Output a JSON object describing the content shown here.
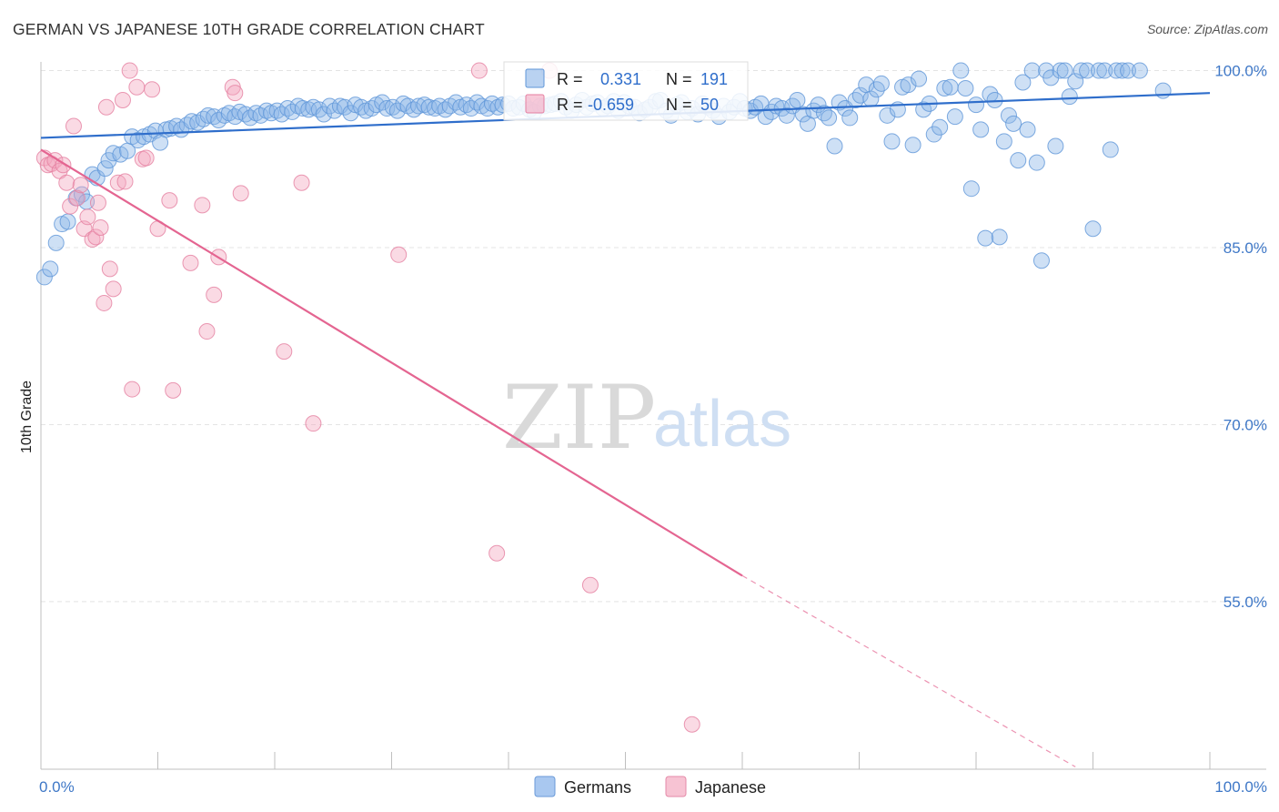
{
  "title": "GERMAN VS JAPANESE 10TH GRADE CORRELATION CHART",
  "source": "Source: ZipAtlas.com",
  "chart_data": {
    "type": "scatter",
    "title": "GERMAN VS JAPANESE 10TH GRADE CORRELATION CHART",
    "xlabel": "",
    "ylabel": "10th Grade",
    "xlim": [
      0,
      100
    ],
    "ylim": [
      40.8,
      101.2
    ],
    "x_tick_labels": [
      "0.0%",
      "100.0%"
    ],
    "y_ticks": [
      55,
      70,
      85,
      100
    ],
    "y_tick_labels": [
      "55.0%",
      "70.0%",
      "85.0%",
      "100.0%"
    ],
    "grid": true,
    "legend_position": "bottom-center",
    "watermark": {
      "left": "ZIP",
      "right": "atlas"
    },
    "stats": [
      {
        "r_label": "R =",
        "r": "0.331",
        "n_label": "N =",
        "n": "191",
        "color": "#8ab4e8"
      },
      {
        "r_label": "R =",
        "r": "-0.659",
        "n_label": "N =",
        "n": "50",
        "color": "#f4a7bf"
      }
    ],
    "series": [
      {
        "name": "Germans",
        "color": "#8ab4e8",
        "stroke": "#5f96d8",
        "trend": {
          "x": [
            0,
            100
          ],
          "y": [
            94.3,
            98.1
          ],
          "color": "#2f6ecb"
        },
        "points": [
          [
            0.3,
            82.5
          ],
          [
            0.8,
            83.2
          ],
          [
            1.3,
            85.4
          ],
          [
            1.8,
            87.0
          ],
          [
            2.3,
            87.2
          ],
          [
            3.0,
            89.2
          ],
          [
            3.5,
            89.5
          ],
          [
            3.9,
            88.9
          ],
          [
            4.4,
            91.2
          ],
          [
            4.8,
            90.9
          ],
          [
            5.5,
            91.7
          ],
          [
            5.8,
            92.4
          ],
          [
            6.2,
            93.0
          ],
          [
            6.8,
            92.9
          ],
          [
            7.4,
            93.2
          ],
          [
            7.8,
            94.4
          ],
          [
            8.3,
            94.1
          ],
          [
            8.8,
            94.4
          ],
          [
            9.3,
            94.6
          ],
          [
            9.8,
            94.9
          ],
          [
            10.2,
            93.9
          ],
          [
            10.7,
            95.0
          ],
          [
            11.1,
            95.1
          ],
          [
            11.6,
            95.3
          ],
          [
            12.0,
            95.0
          ],
          [
            12.5,
            95.4
          ],
          [
            12.9,
            95.7
          ],
          [
            13.4,
            95.6
          ],
          [
            13.9,
            95.9
          ],
          [
            14.3,
            96.2
          ],
          [
            14.8,
            96.1
          ],
          [
            15.2,
            95.8
          ],
          [
            15.7,
            96.2
          ],
          [
            16.1,
            96.4
          ],
          [
            16.6,
            96.1
          ],
          [
            17.0,
            96.5
          ],
          [
            17.5,
            96.3
          ],
          [
            17.9,
            96.0
          ],
          [
            18.4,
            96.4
          ],
          [
            18.8,
            96.2
          ],
          [
            19.3,
            96.6
          ],
          [
            19.7,
            96.4
          ],
          [
            20.2,
            96.6
          ],
          [
            20.6,
            96.3
          ],
          [
            21.1,
            96.8
          ],
          [
            21.5,
            96.5
          ],
          [
            22.0,
            97.0
          ],
          [
            22.4,
            96.8
          ],
          [
            22.9,
            96.7
          ],
          [
            23.3,
            96.9
          ],
          [
            23.8,
            96.7
          ],
          [
            24.2,
            96.3
          ],
          [
            24.7,
            97.0
          ],
          [
            25.1,
            96.6
          ],
          [
            25.6,
            97.0
          ],
          [
            26.0,
            96.9
          ],
          [
            26.5,
            96.4
          ],
          [
            26.9,
            97.1
          ],
          [
            27.4,
            96.9
          ],
          [
            27.8,
            96.6
          ],
          [
            28.3,
            96.8
          ],
          [
            28.7,
            97.1
          ],
          [
            29.2,
            97.3
          ],
          [
            29.6,
            96.8
          ],
          [
            30.1,
            96.9
          ],
          [
            30.5,
            96.6
          ],
          [
            31.0,
            97.2
          ],
          [
            31.4,
            97.0
          ],
          [
            31.9,
            96.7
          ],
          [
            32.3,
            97.0
          ],
          [
            32.8,
            97.1
          ],
          [
            33.2,
            96.9
          ],
          [
            33.7,
            96.8
          ],
          [
            34.1,
            97.0
          ],
          [
            34.6,
            96.7
          ],
          [
            35.0,
            97.0
          ],
          [
            35.5,
            97.3
          ],
          [
            35.9,
            96.9
          ],
          [
            36.4,
            97.1
          ],
          [
            36.8,
            96.8
          ],
          [
            37.3,
            97.3
          ],
          [
            37.7,
            97.0
          ],
          [
            38.2,
            96.8
          ],
          [
            38.6,
            97.2
          ],
          [
            39.1,
            96.9
          ],
          [
            39.5,
            97.1
          ],
          [
            40.0,
            97.2
          ],
          [
            40.4,
            96.8
          ],
          [
            40.9,
            96.9
          ],
          [
            41.3,
            97.2
          ],
          [
            41.8,
            96.7
          ],
          [
            42.2,
            96.5
          ],
          [
            42.7,
            97.0
          ],
          [
            43.1,
            97.0
          ],
          [
            43.6,
            97.1
          ],
          [
            44.0,
            97.2
          ],
          [
            44.5,
            97.4
          ],
          [
            44.9,
            96.9
          ],
          [
            45.4,
            96.6
          ],
          [
            45.8,
            97.1
          ],
          [
            46.3,
            97.5
          ],
          [
            46.7,
            96.9
          ],
          [
            47.2,
            97.2
          ],
          [
            47.6,
            97.3
          ],
          [
            48.1,
            96.8
          ],
          [
            48.5,
            97.0
          ],
          [
            49.0,
            97.4
          ],
          [
            49.4,
            96.6
          ],
          [
            49.9,
            97.3
          ],
          [
            50.3,
            97.0
          ],
          [
            50.8,
            96.9
          ],
          [
            51.2,
            96.4
          ],
          [
            51.7,
            96.7
          ],
          [
            52.1,
            96.9
          ],
          [
            52.6,
            97.4
          ],
          [
            53.0,
            97.5
          ],
          [
            53.5,
            96.6
          ],
          [
            53.9,
            96.2
          ],
          [
            54.4,
            97.1
          ],
          [
            54.8,
            97.3
          ],
          [
            55.3,
            96.5
          ],
          [
            55.7,
            96.8
          ],
          [
            56.2,
            96.3
          ],
          [
            56.6,
            97.2
          ],
          [
            57.1,
            96.9
          ],
          [
            57.5,
            96.6
          ],
          [
            58.0,
            96.1
          ],
          [
            58.4,
            97.0
          ],
          [
            58.9,
            96.5
          ],
          [
            59.3,
            96.9
          ],
          [
            59.8,
            97.4
          ],
          [
            60.2,
            96.8
          ],
          [
            60.7,
            96.6
          ],
          [
            61.1,
            96.9
          ],
          [
            61.6,
            97.2
          ],
          [
            62.0,
            96.1
          ],
          [
            62.5,
            96.5
          ],
          [
            62.9,
            97.0
          ],
          [
            63.4,
            96.8
          ],
          [
            63.8,
            96.2
          ],
          [
            64.3,
            97.0
          ],
          [
            64.7,
            97.5
          ],
          [
            65.2,
            96.3
          ],
          [
            65.6,
            95.5
          ],
          [
            66.1,
            96.6
          ],
          [
            66.5,
            97.1
          ],
          [
            67.0,
            96.4
          ],
          [
            67.4,
            96.0
          ],
          [
            67.9,
            93.6
          ],
          [
            68.3,
            97.3
          ],
          [
            68.8,
            96.8
          ],
          [
            69.2,
            96.0
          ],
          [
            69.7,
            97.5
          ],
          [
            70.1,
            97.9
          ],
          [
            70.6,
            98.8
          ],
          [
            71.0,
            97.6
          ],
          [
            71.5,
            98.4
          ],
          [
            71.9,
            98.9
          ],
          [
            72.4,
            96.2
          ],
          [
            72.8,
            94.0
          ],
          [
            73.3,
            96.7
          ],
          [
            73.7,
            98.6
          ],
          [
            74.2,
            98.8
          ],
          [
            74.6,
            93.7
          ],
          [
            75.1,
            99.3
          ],
          [
            75.5,
            96.7
          ],
          [
            76.0,
            97.2
          ],
          [
            76.4,
            94.6
          ],
          [
            76.9,
            95.2
          ],
          [
            77.3,
            98.5
          ],
          [
            77.8,
            98.6
          ],
          [
            78.2,
            96.1
          ],
          [
            78.7,
            100.0
          ],
          [
            79.1,
            98.5
          ],
          [
            79.6,
            90.0
          ],
          [
            80.0,
            97.1
          ],
          [
            80.4,
            95.0
          ],
          [
            80.8,
            85.8
          ],
          [
            81.2,
            98.0
          ],
          [
            81.6,
            97.5
          ],
          [
            82.0,
            85.9
          ],
          [
            82.4,
            94.0
          ],
          [
            82.8,
            96.2
          ],
          [
            83.2,
            95.5
          ],
          [
            83.6,
            92.4
          ],
          [
            84.0,
            99.0
          ],
          [
            84.4,
            95.0
          ],
          [
            84.8,
            100.0
          ],
          [
            85.2,
            92.2
          ],
          [
            85.6,
            83.9
          ],
          [
            86.0,
            100.0
          ],
          [
            86.4,
            99.4
          ],
          [
            86.8,
            93.6
          ],
          [
            87.2,
            100.0
          ],
          [
            87.6,
            100.0
          ],
          [
            88.0,
            97.8
          ],
          [
            88.5,
            99.1
          ],
          [
            89.0,
            100.0
          ],
          [
            89.5,
            100.0
          ],
          [
            90.0,
            86.6
          ],
          [
            90.5,
            100.0
          ],
          [
            91.0,
            100.0
          ],
          [
            91.5,
            93.3
          ],
          [
            92.0,
            100.0
          ],
          [
            92.5,
            100.0
          ],
          [
            93.0,
            100.0
          ],
          [
            94.0,
            100.0
          ],
          [
            96.0,
            98.3
          ]
        ]
      },
      {
        "name": "Japanese",
        "color": "#f4a7bf",
        "stroke": "#e57fa0",
        "trend": {
          "x": [
            0,
            60
          ],
          "y": [
            93.3,
            57.2
          ],
          "dashed_to": [
            88.5,
            41.0
          ],
          "color": "#e46591"
        },
        "points": [
          [
            0.3,
            92.6
          ],
          [
            0.6,
            92.0
          ],
          [
            0.9,
            92.1
          ],
          [
            1.2,
            92.4
          ],
          [
            1.6,
            91.5
          ],
          [
            1.9,
            92.0
          ],
          [
            2.2,
            90.5
          ],
          [
            2.5,
            88.5
          ],
          [
            2.8,
            95.3
          ],
          [
            3.1,
            89.2
          ],
          [
            3.4,
            90.3
          ],
          [
            3.7,
            86.6
          ],
          [
            4.0,
            87.6
          ],
          [
            4.4,
            85.7
          ],
          [
            4.7,
            85.9
          ],
          [
            4.9,
            88.8
          ],
          [
            5.1,
            86.7
          ],
          [
            5.4,
            80.3
          ],
          [
            5.6,
            96.9
          ],
          [
            5.9,
            83.2
          ],
          [
            6.2,
            81.5
          ],
          [
            6.6,
            90.5
          ],
          [
            7.0,
            97.5
          ],
          [
            7.2,
            90.6
          ],
          [
            7.6,
            100.0
          ],
          [
            7.8,
            73.0
          ],
          [
            8.2,
            98.6
          ],
          [
            8.7,
            92.5
          ],
          [
            9.0,
            92.6
          ],
          [
            9.5,
            98.4
          ],
          [
            10.0,
            86.6
          ],
          [
            11.0,
            89.0
          ],
          [
            11.3,
            72.9
          ],
          [
            12.8,
            83.7
          ],
          [
            13.8,
            88.6
          ],
          [
            14.2,
            77.9
          ],
          [
            14.8,
            81.0
          ],
          [
            15.2,
            84.2
          ],
          [
            16.4,
            98.6
          ],
          [
            16.6,
            98.1
          ],
          [
            17.1,
            89.6
          ],
          [
            20.8,
            76.2
          ],
          [
            22.3,
            90.5
          ],
          [
            23.3,
            70.1
          ],
          [
            30.6,
            84.4
          ],
          [
            37.5,
            100.0
          ],
          [
            39.0,
            59.1
          ],
          [
            43.5,
            100.0
          ],
          [
            47.0,
            56.4
          ],
          [
            55.7,
            44.6
          ]
        ]
      }
    ]
  },
  "legend": [
    {
      "label": "Germans",
      "color": "#a9c8f0",
      "stroke": "#6a9ad8"
    },
    {
      "label": "Japanese",
      "color": "#f7c3d3",
      "stroke": "#e58aa8"
    }
  ]
}
